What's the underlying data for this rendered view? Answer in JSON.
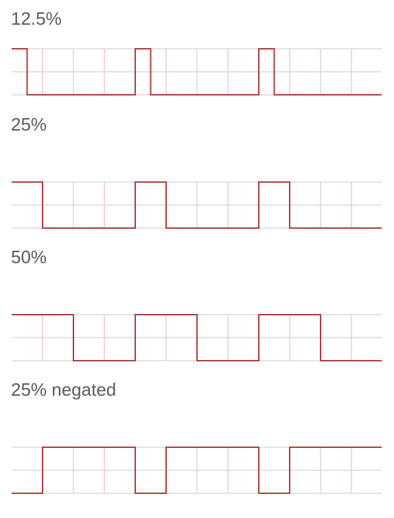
{
  "colors": {
    "waveform": "#b03a3a",
    "grid": "#d8d8d8",
    "grid_accent": "#f2c9c9",
    "label": "#5b5b5b"
  },
  "waveforms": [
    {
      "label": "12.5%",
      "duty": 0.125,
      "negated": false
    },
    {
      "label": "25%",
      "duty": 0.25,
      "negated": false
    },
    {
      "label": "50%",
      "duty": 0.5,
      "negated": false
    },
    {
      "label": "25% negated",
      "duty": 0.25,
      "negated": true
    }
  ]
}
